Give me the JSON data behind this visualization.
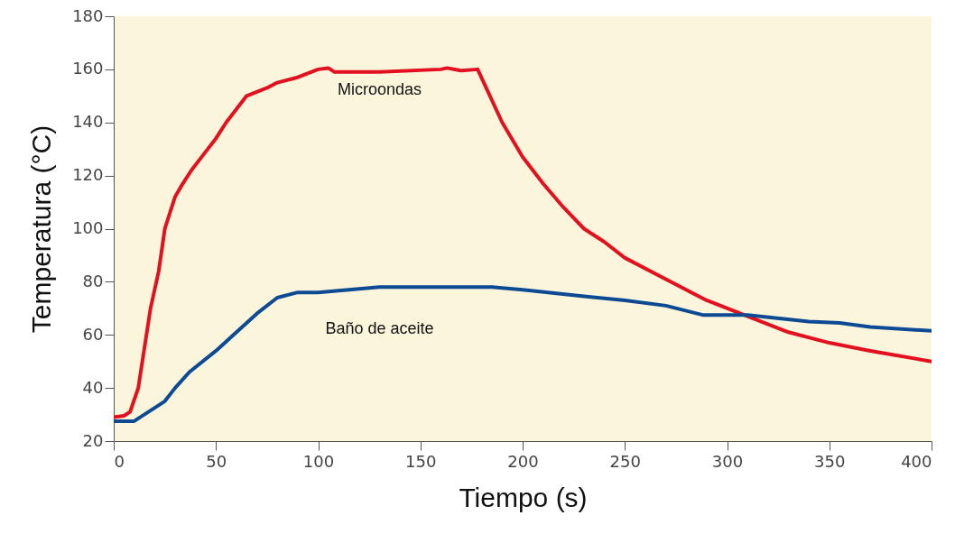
{
  "chart_data": {
    "type": "line",
    "xlabel": "Tiempo (s)",
    "ylabel": "Temperatura (°C)",
    "xlim": [
      0,
      400
    ],
    "ylim": [
      20,
      180
    ],
    "xticks": [
      0,
      50,
      100,
      150,
      200,
      250,
      300,
      350,
      400
    ],
    "yticks": [
      20,
      40,
      60,
      80,
      100,
      120,
      140,
      160,
      180
    ],
    "line_style": "solid",
    "marker": "none",
    "series": [
      {
        "name": "Microondas",
        "color": "#e3101f",
        "x": [
          0,
          5,
          8,
          12,
          15,
          18,
          22,
          25,
          30,
          33,
          38,
          45,
          50,
          55,
          60,
          65,
          75,
          80,
          90,
          100,
          105,
          108,
          130,
          160,
          163,
          170,
          178,
          190,
          200,
          210,
          220,
          230,
          240,
          250,
          270,
          290,
          310,
          330,
          350,
          370,
          400
        ],
        "values": [
          29,
          29.5,
          31,
          40,
          55,
          70,
          84,
          100,
          112,
          116,
          122,
          129,
          134,
          140,
          145,
          150,
          153,
          155,
          157,
          160,
          160.5,
          159,
          159,
          160,
          160.5,
          159.5,
          160,
          140,
          127,
          117,
          108,
          100,
          95,
          89,
          81,
          73,
          67,
          61,
          57,
          54,
          50
        ]
      },
      {
        "name": "Baño de aceite",
        "color": "#0d4a94",
        "x": [
          0,
          10,
          25,
          30,
          37,
          50,
          70,
          80,
          90,
          100,
          130,
          185,
          200,
          230,
          250,
          270,
          288,
          310,
          340,
          355,
          370,
          400
        ],
        "values": [
          27.5,
          27.5,
          35,
          40,
          46,
          54,
          68,
          74,
          76,
          76,
          78,
          78,
          77,
          74.5,
          73,
          71,
          67.5,
          67.5,
          65,
          64.5,
          63,
          61.5
        ]
      }
    ]
  }
}
